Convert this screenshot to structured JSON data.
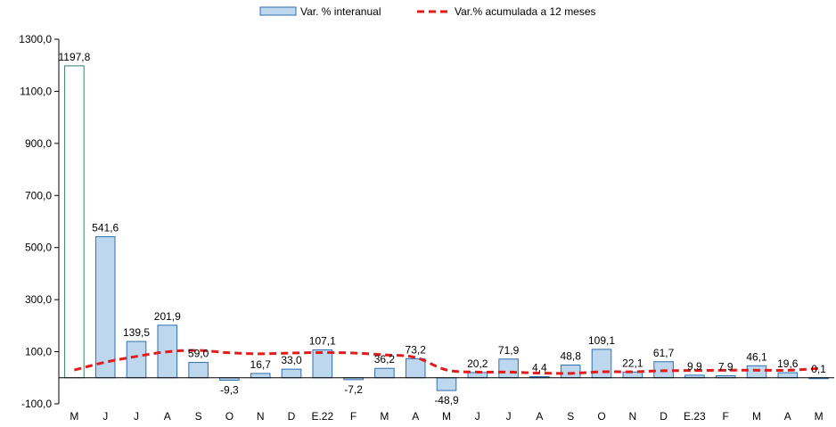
{
  "chart_data": {
    "type": "bar",
    "categories": [
      "M",
      "J",
      "J",
      "A",
      "S",
      "O",
      "N",
      "D",
      "E.22",
      "F",
      "M",
      "A",
      "M",
      "J",
      "J",
      "A",
      "S",
      "O",
      "N",
      "D",
      "E.23",
      "F",
      "M",
      "A",
      "M"
    ],
    "series": [
      {
        "name": "Var. % interanual",
        "type": "bar",
        "values": [
          1197.8,
          541.6,
          139.5,
          201.9,
          59.0,
          -9.3,
          16.7,
          33.0,
          107.1,
          -7.2,
          36.2,
          73.2,
          -48.9,
          20.2,
          71.9,
          4.4,
          48.8,
          109.1,
          22.1,
          61.7,
          9.9,
          7.9,
          46.1,
          19.6,
          0.1
        ],
        "labels": [
          "1197,8",
          "541,6",
          "139,5",
          "201,9",
          "59,0",
          "-9,3",
          "16,7",
          "33,0",
          "107,1",
          "-7,2",
          "36,2",
          "73,2",
          "-48,9",
          "20,2",
          "71,9",
          "4,4",
          "48,8",
          "109,1",
          "22,1",
          "61,7",
          "9,9",
          "7,9",
          "46,1",
          "19,6",
          "0,1"
        ],
        "color": "#bdd7ee",
        "stroke": "#2f6fb0",
        "highlight_first_color": "#ffffff",
        "highlight_first_stroke": "#3a7d6e"
      },
      {
        "name": "Var.% acumulada a 12 meses",
        "type": "line",
        "style": "dashed",
        "color": "#e31b1b",
        "values": [
          30,
          60,
          82,
          100,
          105,
          96,
          92,
          95,
          97,
          95,
          88,
          78,
          30,
          22,
          22,
          18,
          17,
          23,
          23,
          27,
          28,
          29,
          29,
          29,
          36
        ]
      }
    ],
    "ylim": [
      -100,
      1300
    ],
    "yticks": [
      -100,
      100,
      300,
      500,
      700,
      900,
      1100,
      1300
    ],
    "ytick_labels": [
      "-100,0",
      "100,0",
      "300,0",
      "500,0",
      "700,0",
      "900,0",
      "1100,0",
      "1300,0"
    ],
    "grid": false,
    "legend_position": "top-center",
    "title": "",
    "xlabel": "",
    "ylabel": ""
  }
}
